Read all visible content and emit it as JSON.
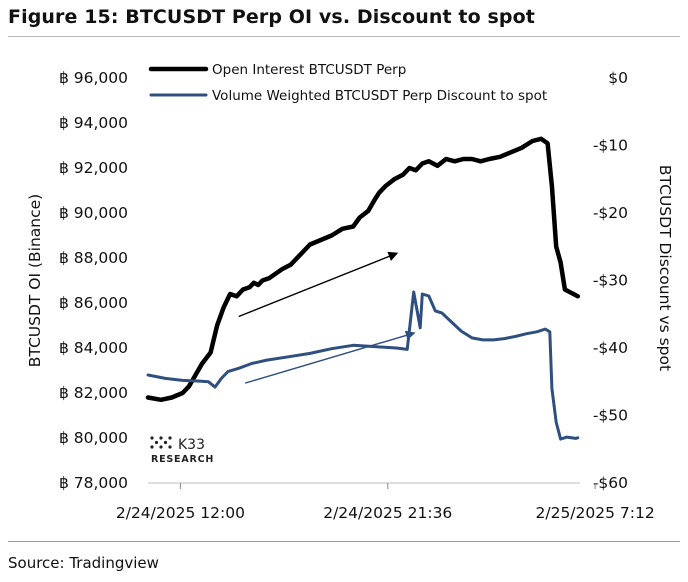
{
  "figure": {
    "title": "Figure 15: BTCUSDT Perp OI vs. Discount to spot",
    "source": "Source: Tradingview"
  },
  "chart_data": {
    "type": "line",
    "left_axis": {
      "label": "BTCUSDT OI (Binance)",
      "range": [
        78000,
        96000
      ],
      "ticks": [
        96000,
        94000,
        92000,
        90000,
        88000,
        86000,
        84000,
        82000,
        80000,
        78000
      ],
      "tick_labels": [
        "฿ 96,000",
        "฿ 94,000",
        "฿ 92,000",
        "฿ 90,000",
        "฿ 88,000",
        "฿ 86,000",
        "฿ 84,000",
        "฿ 82,000",
        "฿ 80,000",
        "฿ 78,000"
      ]
    },
    "right_axis": {
      "label": "BTCUSDT Discount vs spot",
      "range": [
        -60,
        0
      ],
      "ticks": [
        0,
        -10,
        -20,
        -30,
        -40,
        -50,
        -60
      ],
      "tick_labels": [
        "$0",
        "-$10",
        "-$20",
        "-$30",
        "-$40",
        "-$50",
        "-$60"
      ]
    },
    "x_axis": {
      "range_hours": [
        0,
        20
      ],
      "ticks_hours": [
        1.5,
        11.1,
        20.7
      ],
      "tick_labels": [
        "2/24/2025 12:00",
        "2/24/2025 21:36",
        "2/25/2025 7:12"
      ]
    },
    "grid": false,
    "legend": "top",
    "series": [
      {
        "name": "Open Interest BTCUSDT Perp",
        "axis": "left",
        "color": "#000000",
        "x": [
          0,
          0.6,
          1.1,
          1.6,
          1.9,
          2.2,
          2.5,
          2.9,
          3.2,
          3.5,
          3.8,
          4.1,
          4.4,
          4.7,
          4.9,
          5.1,
          5.3,
          5.6,
          5.9,
          6.2,
          6.6,
          7.0,
          7.5,
          8.0,
          8.5,
          9.0,
          9.5,
          9.8,
          10.2,
          10.5,
          10.7,
          11.0,
          11.4,
          11.8,
          12.1,
          12.4,
          12.7,
          13.0,
          13.4,
          13.8,
          14.2,
          14.6,
          15.0,
          15.4,
          15.8,
          16.3,
          16.8,
          17.3,
          17.8,
          18.2,
          18.5,
          18.7,
          18.9,
          19.1,
          19.3,
          19.5,
          19.7,
          19.9
        ],
        "y": [
          81800,
          81700,
          81800,
          82000,
          82300,
          82800,
          83300,
          83800,
          85000,
          85800,
          86400,
          86300,
          86600,
          86700,
          86900,
          86800,
          87000,
          87100,
          87300,
          87500,
          87700,
          88100,
          88600,
          88800,
          89000,
          89300,
          89400,
          89800,
          90100,
          90600,
          90900,
          91200,
          91500,
          91700,
          92000,
          91900,
          92200,
          92300,
          92100,
          92400,
          92300,
          92400,
          92400,
          92300,
          92400,
          92500,
          92700,
          92900,
          93200,
          93300,
          93100,
          91200,
          88500,
          87800,
          86600,
          86500,
          86400,
          86300
        ]
      },
      {
        "name": "Volume Weighted BTCUSDT Perp Discount to spot",
        "axis": "right",
        "color": "#2f4f7f",
        "x": [
          0,
          0.8,
          1.6,
          2.4,
          2.8,
          3.1,
          3.4,
          3.7,
          4.2,
          4.8,
          5.5,
          6.5,
          7.5,
          8.5,
          9.5,
          10.5,
          11.5,
          12.0,
          12.3,
          12.6,
          12.7,
          13.0,
          13.3,
          13.6,
          14.0,
          14.5,
          15.0,
          15.5,
          16.0,
          16.5,
          17.0,
          17.5,
          18.0,
          18.4,
          18.6,
          18.7,
          18.9,
          19.1,
          19.4,
          19.8,
          19.9
        ],
        "y": [
          -44.0,
          -44.5,
          -44.8,
          -44.9,
          -45.0,
          -45.8,
          -44.5,
          -43.5,
          -43.0,
          -42.3,
          -41.8,
          -41.3,
          -40.8,
          -40.1,
          -39.6,
          -39.8,
          -40.0,
          -40.2,
          -31.7,
          -37.0,
          -32.0,
          -32.3,
          -34.5,
          -34.8,
          -36.0,
          -37.5,
          -38.5,
          -38.8,
          -38.8,
          -38.6,
          -38.3,
          -37.9,
          -37.6,
          -37.2,
          -37.6,
          -46.0,
          -51.0,
          -53.5,
          -53.2,
          -53.4,
          -53.3
        ]
      }
    ],
    "annotations": [
      {
        "kind": "arrow",
        "axis": "left",
        "x1": 4.2,
        "y1": 85400,
        "x2": 11.5,
        "y2": 88200,
        "color": "#000000"
      },
      {
        "kind": "arrow",
        "axis": "right",
        "x1": 4.5,
        "y1": -45.2,
        "x2": 12.3,
        "y2": -37.8,
        "color": "#2f4f7f"
      }
    ]
  },
  "logo": {
    "name": "K33",
    "sub": "RESEARCH"
  }
}
